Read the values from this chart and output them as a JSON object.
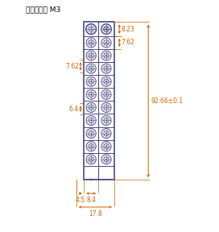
{
  "title": "端子大小： M3",
  "title_color": "#000000",
  "dim_color": "#cc6600",
  "line_color": "#4a4a8a",
  "body_color": "#d0d0d0",
  "bg_color": "#ffffff",
  "num_terminals": 12,
  "screw_color": "#aaaaaa",
  "dim_8_23": "8.23",
  "dim_7_62": "7.62",
  "dim_7_62_left": "7.62",
  "dim_6_4": "6.4",
  "dim_92_66": "92.66±0.1",
  "dim_4_5": "4.5",
  "dim_8_4": "8.4",
  "dim_17_8": "17.8"
}
